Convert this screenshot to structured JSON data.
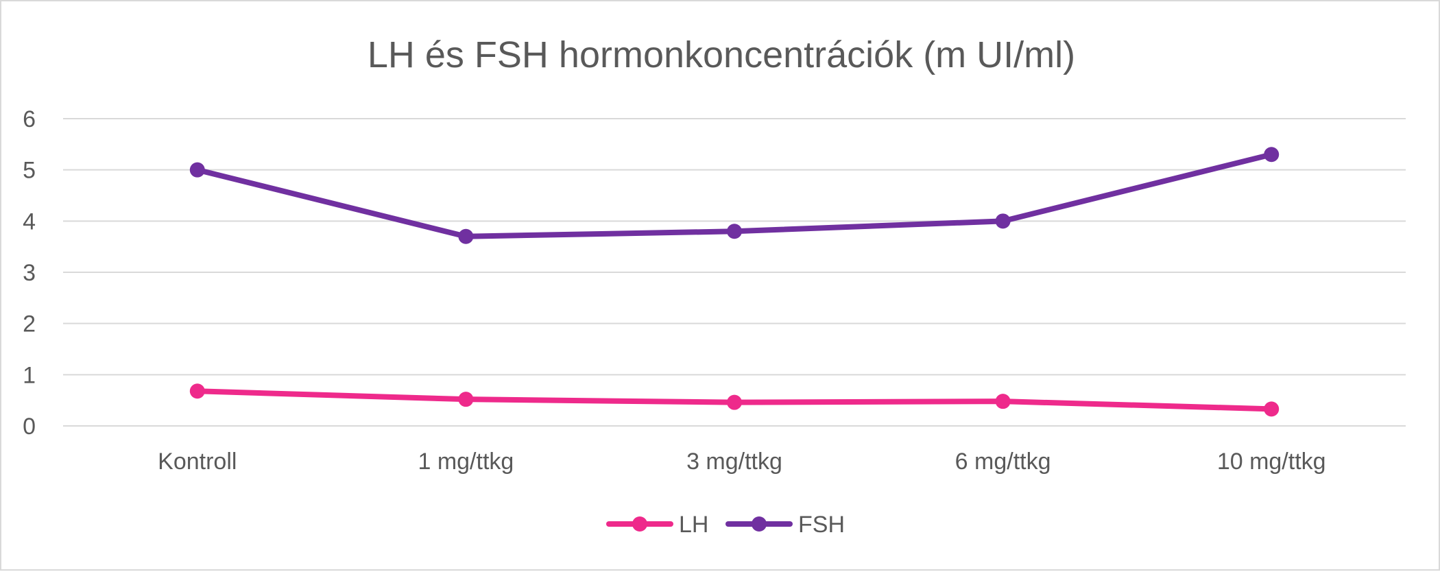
{
  "chart_data": {
    "type": "line",
    "title": "LH és FSH hormonkoncentrációk (m UI/ml)",
    "xlabel": "",
    "ylabel": "",
    "categories": [
      "Kontroll",
      "1 mg/ttkg",
      "3 mg/ttkg",
      "6 mg/ttkg",
      "10 mg/ttkg"
    ],
    "ylim": [
      0,
      6
    ],
    "yticks": [
      "0",
      "1",
      "2",
      "3",
      "4",
      "5",
      "6"
    ],
    "grid": true,
    "legend_position": "bottom",
    "series": [
      {
        "name": "LH",
        "color": "#ee2a8b",
        "values": [
          0.68,
          0.52,
          0.46,
          0.48,
          0.33
        ]
      },
      {
        "name": "FSH",
        "color": "#7030a0",
        "values": [
          5.0,
          3.7,
          3.8,
          4.0,
          5.3
        ]
      }
    ]
  }
}
